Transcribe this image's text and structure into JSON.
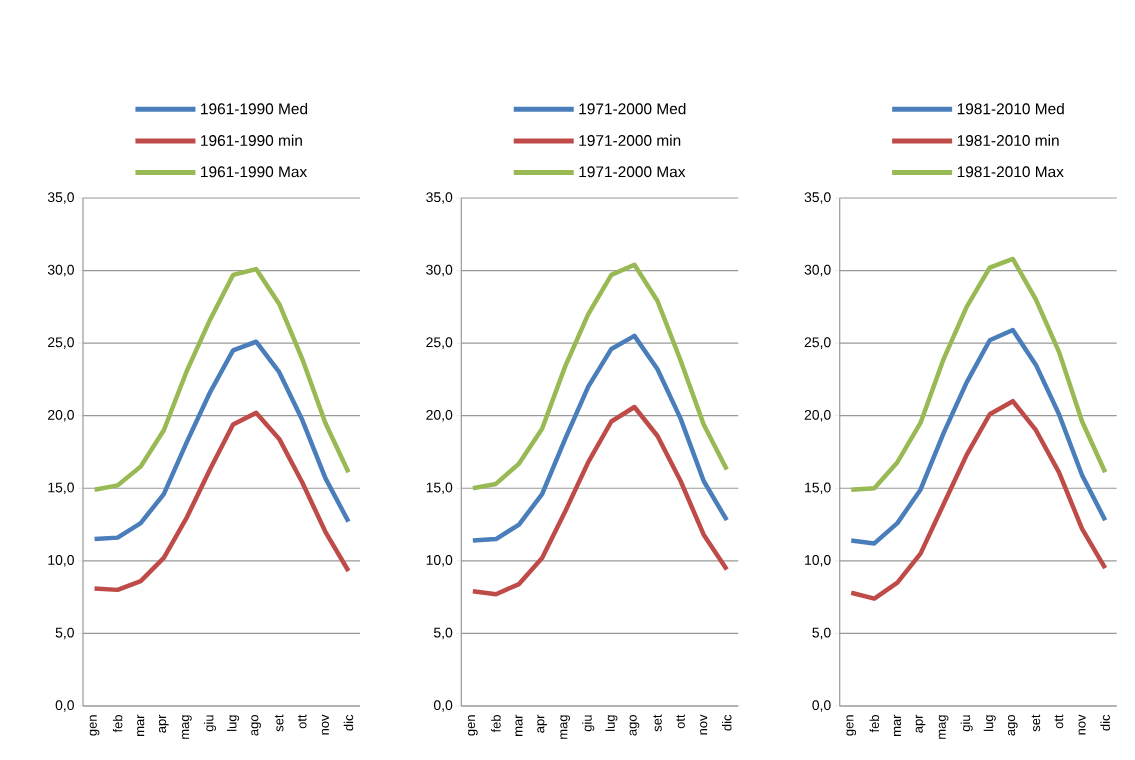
{
  "chart_data": [
    {
      "type": "line",
      "categories": [
        "gen",
        "feb",
        "mar",
        "apr",
        "mag",
        "giu",
        "lug",
        "ago",
        "set",
        "ott",
        "nov",
        "dic"
      ],
      "series": [
        {
          "name": "1961-1990 Med",
          "color": "#4a7ebb",
          "values": [
            11.5,
            11.6,
            12.6,
            14.6,
            18.2,
            21.6,
            24.5,
            25.1,
            23.0,
            19.7,
            15.7,
            12.7
          ]
        },
        {
          "name": "1961-1990 min",
          "color": "#be4b48",
          "values": [
            8.1,
            8.0,
            8.6,
            10.2,
            13.0,
            16.3,
            19.4,
            20.2,
            18.4,
            15.4,
            12.0,
            9.3
          ]
        },
        {
          "name": "1961-1990 Max",
          "color": "#98b954",
          "values": [
            14.9,
            15.2,
            16.5,
            19.0,
            23.1,
            26.6,
            29.7,
            30.1,
            27.7,
            23.9,
            19.5,
            16.1
          ]
        }
      ],
      "ylim": [
        0,
        35
      ],
      "yticks": [
        {
          "value": 0,
          "label": "0,0"
        },
        {
          "value": 5,
          "label": "5,0"
        },
        {
          "value": 10,
          "label": "10,0"
        },
        {
          "value": 15,
          "label": "15,0"
        },
        {
          "value": 20,
          "label": "20,0"
        },
        {
          "value": 25,
          "label": "25,0"
        },
        {
          "value": 30,
          "label": "30,0"
        },
        {
          "value": 35,
          "label": "35,0"
        }
      ],
      "grid": "y",
      "legend": "top"
    },
    {
      "type": "line",
      "categories": [
        "gen",
        "feb",
        "mar",
        "apr",
        "mag",
        "giu",
        "lug",
        "ago",
        "set",
        "ott",
        "nov",
        "dic"
      ],
      "series": [
        {
          "name": "1971-2000 Med",
          "color": "#4a7ebb",
          "values": [
            11.4,
            11.5,
            12.5,
            14.6,
            18.4,
            22.0,
            24.6,
            25.5,
            23.2,
            19.8,
            15.5,
            12.8
          ]
        },
        {
          "name": "1971-2000 min",
          "color": "#be4b48",
          "values": [
            7.9,
            7.7,
            8.4,
            10.2,
            13.4,
            16.8,
            19.6,
            20.6,
            18.6,
            15.5,
            11.8,
            9.4
          ]
        },
        {
          "name": "1971-2000 Max",
          "color": "#98b954",
          "values": [
            15.0,
            15.3,
            16.7,
            19.1,
            23.4,
            27.0,
            29.7,
            30.4,
            27.9,
            23.8,
            19.4,
            16.3
          ]
        }
      ],
      "ylim": [
        0,
        35
      ],
      "yticks": [
        {
          "value": 0,
          "label": "0,0"
        },
        {
          "value": 5,
          "label": "5,0"
        },
        {
          "value": 10,
          "label": "10,0"
        },
        {
          "value": 15,
          "label": "15,0"
        },
        {
          "value": 20,
          "label": "20,0"
        },
        {
          "value": 25,
          "label": "25,0"
        },
        {
          "value": 30,
          "label": "30,0"
        },
        {
          "value": 35,
          "label": "35,0"
        }
      ],
      "grid": "y",
      "legend": "top"
    },
    {
      "type": "line",
      "categories": [
        "gen",
        "feb",
        "mar",
        "apr",
        "mag",
        "giu",
        "lug",
        "ago",
        "set",
        "ott",
        "nov",
        "dic"
      ],
      "series": [
        {
          "name": "1981-2010 Med",
          "color": "#4a7ebb",
          "values": [
            11.4,
            11.2,
            12.6,
            14.9,
            18.8,
            22.3,
            25.2,
            25.9,
            23.5,
            20.1,
            15.9,
            12.8
          ]
        },
        {
          "name": "1981-2010 min",
          "color": "#be4b48",
          "values": [
            7.8,
            7.4,
            8.5,
            10.5,
            13.9,
            17.3,
            20.1,
            21.0,
            19.0,
            16.1,
            12.2,
            9.5
          ]
        },
        {
          "name": "1981-2010 Max",
          "color": "#98b954",
          "values": [
            14.9,
            15.0,
            16.8,
            19.5,
            23.9,
            27.5,
            30.2,
            30.8,
            28.0,
            24.4,
            19.6,
            16.1
          ]
        }
      ],
      "ylim": [
        0,
        35
      ],
      "yticks": [
        {
          "value": 0,
          "label": "0,0"
        },
        {
          "value": 5,
          "label": "5,0"
        },
        {
          "value": 10,
          "label": "10,0"
        },
        {
          "value": 15,
          "label": "15,0"
        },
        {
          "value": 20,
          "label": "20,0"
        },
        {
          "value": 25,
          "label": "25,0"
        },
        {
          "value": 30,
          "label": "30,0"
        },
        {
          "value": 35,
          "label": "35,0"
        }
      ],
      "grid": "y",
      "legend": "top"
    }
  ]
}
